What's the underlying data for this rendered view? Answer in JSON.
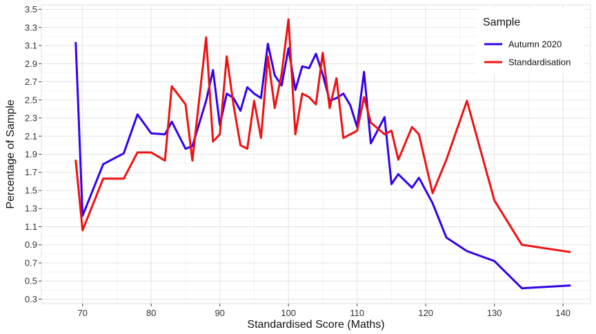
{
  "chart_data": {
    "type": "line",
    "title": "",
    "xlabel": "Standardised Score (Maths)",
    "ylabel": "Percentage of Sample",
    "xlim": [
      64,
      144
    ],
    "ylim": [
      0.25,
      3.55
    ],
    "x_ticks": [
      70,
      80,
      90,
      100,
      110,
      120,
      130,
      140
    ],
    "y_ticks": [
      0.3,
      0.5,
      0.7,
      0.9,
      1.1,
      1.3,
      1.5,
      1.7,
      1.9,
      2.1,
      2.3,
      2.5,
      2.7,
      2.9,
      3.1,
      3.3,
      3.5
    ],
    "grid": true,
    "legend": {
      "title": "Sample",
      "placement": "top-right"
    },
    "series": [
      {
        "name": "Autumn 2020",
        "color": "#3300ee",
        "x": [
          69,
          70,
          73,
          76,
          78,
          80,
          82,
          83,
          85,
          86,
          88,
          89,
          90,
          91,
          92,
          93,
          94,
          95,
          96,
          97,
          98,
          99,
          100,
          101,
          102,
          103,
          104,
          105,
          106,
          107,
          108,
          109,
          110,
          111,
          112,
          114,
          115,
          116,
          118,
          119,
          121,
          123,
          126,
          130,
          134,
          141
        ],
        "y": [
          3.13,
          1.22,
          1.79,
          1.91,
          2.34,
          2.13,
          2.12,
          2.26,
          1.96,
          1.99,
          2.49,
          2.83,
          2.22,
          2.57,
          2.52,
          2.38,
          2.64,
          2.57,
          2.52,
          3.12,
          2.77,
          2.66,
          3.07,
          2.61,
          2.87,
          2.85,
          3.01,
          2.78,
          2.49,
          2.52,
          2.57,
          2.44,
          2.2,
          2.81,
          2.02,
          2.31,
          1.57,
          1.68,
          1.53,
          1.64,
          1.36,
          0.98,
          0.83,
          0.72,
          0.42,
          0.45
        ]
      },
      {
        "name": "Standardisation",
        "color": "#ee1111",
        "x": [
          69,
          70,
          73,
          76,
          78,
          80,
          82,
          83,
          85,
          86,
          88,
          89,
          90,
          91,
          92,
          93,
          94,
          95,
          96,
          97,
          98,
          99,
          100,
          101,
          102,
          103,
          104,
          105,
          106,
          107,
          108,
          110,
          111,
          112,
          114,
          115,
          116,
          118,
          119,
          121,
          123,
          126,
          130,
          134,
          141
        ],
        "y": [
          1.83,
          1.06,
          1.63,
          1.63,
          1.92,
          1.92,
          1.83,
          2.65,
          2.45,
          1.83,
          3.19,
          2.04,
          2.12,
          2.98,
          2.44,
          2.0,
          1.96,
          2.49,
          2.08,
          2.98,
          2.41,
          2.79,
          3.39,
          2.12,
          2.57,
          2.53,
          2.45,
          3.02,
          2.41,
          2.74,
          2.08,
          2.16,
          2.53,
          2.25,
          2.12,
          2.16,
          1.84,
          2.2,
          2.12,
          1.47,
          1.84,
          2.49,
          1.39,
          0.9,
          0.82
        ]
      }
    ]
  }
}
